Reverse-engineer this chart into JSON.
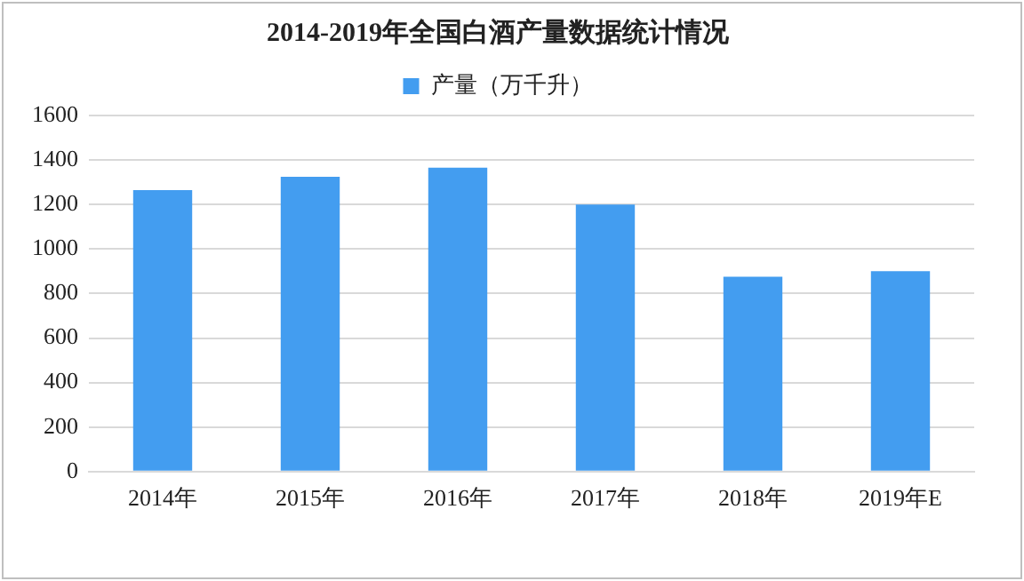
{
  "chart_data": {
    "type": "bar",
    "title": "2014-2019年全国白酒产量数据统计情况",
    "categories": [
      "2014年",
      "2015年",
      "2016年",
      "2017年",
      "2018年",
      "2019年E"
    ],
    "series": [
      {
        "name": "产量（万千升）",
        "color": "#439df0",
        "values": [
          1265,
          1325,
          1365,
          1200,
          875,
          900
        ]
      }
    ],
    "ylim": [
      0,
      1600
    ],
    "yticks": [
      0,
      200,
      400,
      600,
      800,
      1000,
      1200,
      1400,
      1600
    ],
    "grid": "y",
    "legend": "top"
  }
}
